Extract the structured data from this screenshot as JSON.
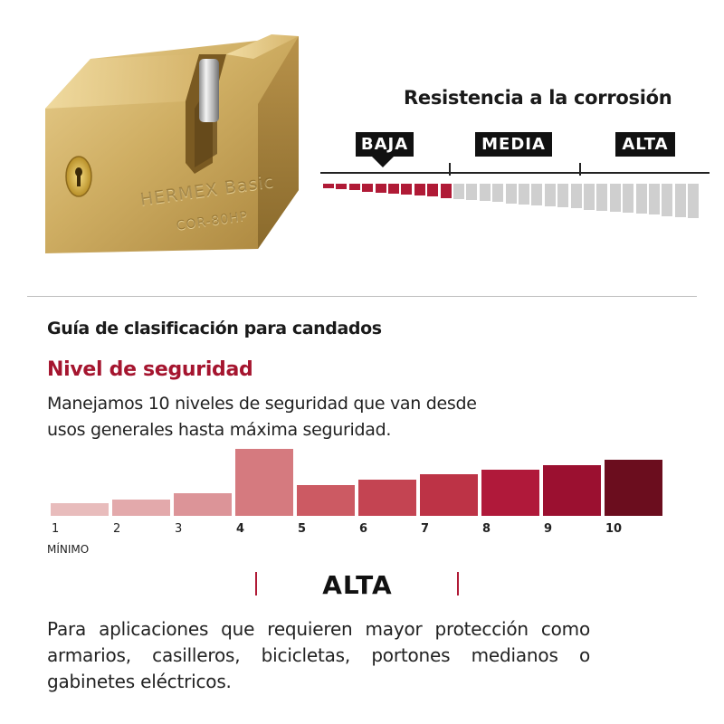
{
  "product": {
    "brand_emboss": "HERMEX Basic",
    "model_emboss": "COR-80HP"
  },
  "corrosion": {
    "title": "Resistencia a la corrosión",
    "levels": [
      "BAJA",
      "MEDIA",
      "ALTA"
    ],
    "selected": "BAJA",
    "active_color": "#b01a36",
    "inactive_color": "#cfcfcf"
  },
  "guide": {
    "title": "Guía de clasificación para candados",
    "security_title": "Nivel de seguridad",
    "intro": "Manejamos 10 niveles de seguridad que van desde usos generales hasta máxima seguridad.",
    "min_label": "MÍNIMO",
    "range_label": "ALTA",
    "highlighted_level": 4,
    "description": "Para aplicaciones que requieren mayor protección como armarios, casilleros, bicicletas, portones medianos o gabinetes eléctricos."
  },
  "levels": [
    {
      "label": "1",
      "color": "#e8bcbc"
    },
    {
      "label": "2",
      "color": "#e3a9ab"
    },
    {
      "label": "3",
      "color": "#dc9498"
    },
    {
      "label": "4",
      "color": "#d57a7f"
    },
    {
      "label": "5",
      "color": "#cc5a63"
    },
    {
      "label": "6",
      "color": "#c44452"
    },
    {
      "label": "7",
      "color": "#bd3346"
    },
    {
      "label": "8",
      "color": "#b0193a"
    },
    {
      "label": "9",
      "color": "#9b1030"
    },
    {
      "label": "10",
      "color": "#6b0d1e"
    }
  ]
}
